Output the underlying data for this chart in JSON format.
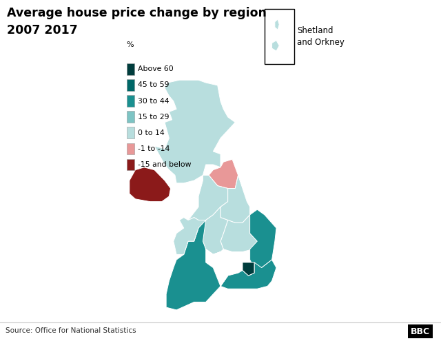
{
  "title_line1": "Average house price change by region",
  "title_line2": "2007 2017",
  "percent_label": "%",
  "source": "Source: Office for National Statistics",
  "legend_labels": [
    "Above 60",
    "45 to 59",
    "30 to 44",
    "15 to 29",
    "0 to 14",
    "-1 to -14",
    "-15 and below"
  ],
  "legend_colors": [
    "#003d3d",
    "#006868",
    "#1a9090",
    "#7dc4c4",
    "#b8dede",
    "#e89898",
    "#8b1a1a"
  ],
  "background_color": "#ffffff",
  "figure_size": [
    6.4,
    4.95
  ],
  "dpi": 100,
  "region_color_map": {
    "Scotland": "#b8dede",
    "Northern_Ireland": "#8b1a1a",
    "North_East": "#e89898",
    "North_West": "#b8dede",
    "Yorkshire": "#b8dede",
    "East_Midlands": "#b8dede",
    "West_Midlands": "#b8dede",
    "East_England": "#1a9090",
    "London": "#003d3d",
    "South_East": "#1a9090",
    "South_West": "#1a9090",
    "Wales": "#b8dede"
  },
  "shetland_label": "Shetland\nand Orkney",
  "xlim": [
    -8.5,
    4.5
  ],
  "ylim": [
    49.5,
    61.5
  ]
}
